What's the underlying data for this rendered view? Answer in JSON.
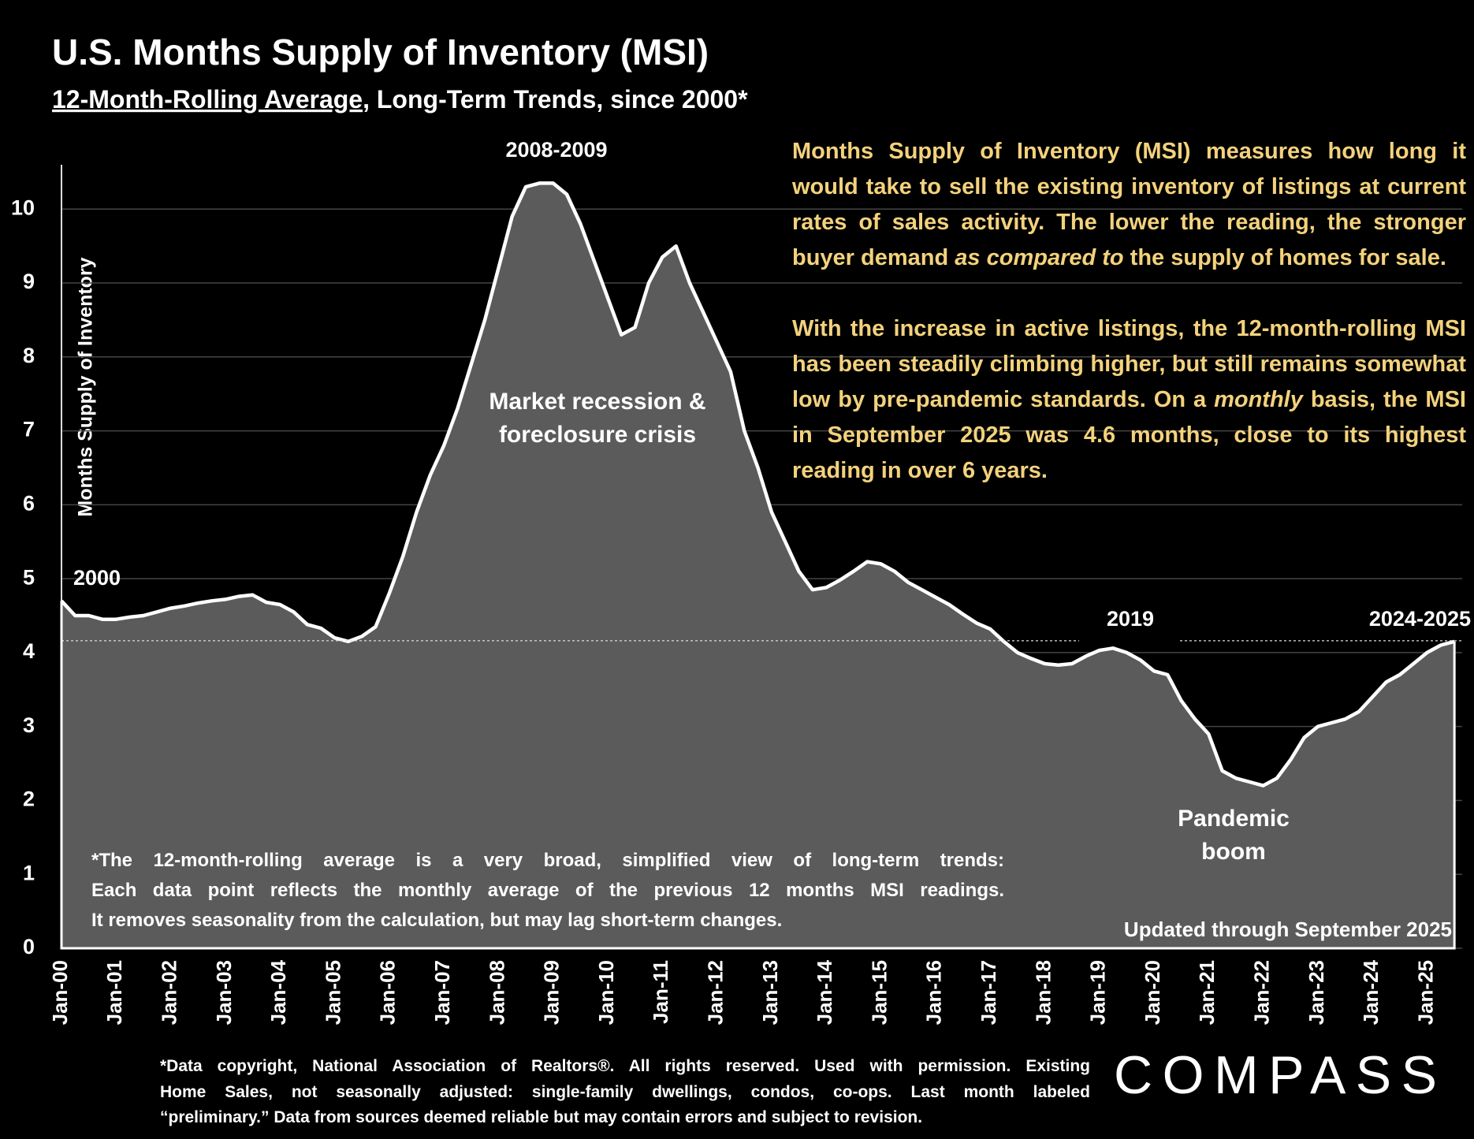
{
  "chart_data": {
    "type": "area",
    "title": "U.S. Months Supply of Inventory (MSI)",
    "subtitle": [
      "12-Month-Rolling Average",
      ", Long-Term Trends, since 2000*"
    ],
    "y_label": "Months Supply of Inventory",
    "categories": [
      "Jan-00",
      null,
      null,
      null,
      "Jan-01",
      null,
      null,
      null,
      "Jan-02",
      null,
      null,
      null,
      "Jan-03",
      null,
      null,
      null,
      "Jan-04",
      null,
      null,
      null,
      "Jan-05",
      null,
      null,
      null,
      "Jan-06",
      null,
      null,
      null,
      "Jan-07",
      null,
      null,
      null,
      "Jan-08",
      null,
      null,
      null,
      "Jan-09",
      null,
      null,
      null,
      "Jan-10",
      null,
      null,
      null,
      "Jan-11",
      null,
      null,
      null,
      "Jan-12",
      null,
      null,
      null,
      "Jan-13",
      null,
      null,
      null,
      "Jan-14",
      null,
      null,
      null,
      "Jan-15",
      null,
      null,
      null,
      "Jan-16",
      null,
      null,
      null,
      "Jan-17",
      null,
      null,
      null,
      "Jan-18",
      null,
      null,
      null,
      "Jan-19",
      null,
      null,
      null,
      "Jan-20",
      null,
      null,
      null,
      "Jan-21",
      null,
      null,
      null,
      "Jan-22",
      null,
      null,
      null,
      "Jan-23",
      null,
      null,
      null,
      "Jan-24",
      null,
      null,
      null,
      "Jan-25",
      null,
      null
    ],
    "values": [
      4.7,
      4.5,
      4.5,
      4.45,
      4.45,
      4.48,
      4.5,
      4.55,
      4.6,
      4.63,
      4.67,
      4.7,
      4.72,
      4.76,
      4.78,
      4.68,
      4.65,
      4.55,
      4.38,
      4.33,
      4.2,
      4.15,
      4.22,
      4.35,
      4.8,
      5.3,
      5.9,
      6.4,
      6.8,
      7.3,
      7.9,
      8.5,
      9.2,
      9.9,
      10.3,
      10.35,
      10.35,
      10.2,
      9.8,
      9.3,
      8.8,
      8.3,
      8.4,
      9.0,
      9.35,
      9.5,
      9.0,
      8.6,
      8.2,
      7.8,
      7.0,
      6.5,
      5.9,
      5.5,
      5.1,
      4.85,
      4.88,
      4.98,
      5.1,
      5.23,
      5.2,
      5.1,
      4.95,
      4.85,
      4.75,
      4.65,
      4.52,
      4.4,
      4.32,
      4.15,
      4.0,
      3.92,
      3.85,
      3.83,
      3.85,
      3.95,
      4.03,
      4.06,
      4.0,
      3.9,
      3.75,
      3.7,
      3.35,
      3.1,
      2.9,
      2.4,
      2.3,
      2.25,
      2.2,
      2.3,
      2.55,
      2.85,
      3.0,
      3.05,
      3.1,
      3.2,
      3.4,
      3.6,
      3.7,
      3.85,
      4.0,
      4.1,
      4.15
    ],
    "color": "#5b5b5b",
    "line_color": "#ffffff",
    "ylim": [
      0,
      10.6
    ],
    "yticks": [
      0,
      1,
      2,
      3,
      4,
      5,
      6,
      7,
      8,
      9,
      10
    ],
    "grid": true,
    "reference_line": 4.16,
    "annotations": [
      "2008-2009",
      "Market recession &",
      "foreclosure crisis",
      "2000",
      "2019",
      "2024-2025",
      "Pandemic",
      "boom"
    ],
    "description": [
      [
        {
          "text": "Months Supply of Inventory (MSI) measures how long it would take to sell the existing inventory of listings at current rates of sales activity. The lower the reading, the stronger buyer demand "
        },
        {
          "text": "as compared to",
          "italic": true
        },
        {
          "text": " the supply of homes for sale."
        }
      ],
      [
        {
          "text": "With the increase in active listings, the 12-month-rolling MSI has been steadily climbing higher, but still remains somewhat low by pre-pandemic standards. On a "
        },
        {
          "text": "monthly",
          "italic": true
        },
        {
          "text": " basis, the MSI in September 2025 was 4.6 months, close to its highest reading in over 6 years."
        }
      ]
    ],
    "footnote": [
      "*The 12-month-rolling average is a very broad, simplified view of long-term trends:",
      "Each data point reflects the monthly average of the previous 12 months MSI readings.",
      "It removes seasonality from the calculation, but may lag short-term changes."
    ],
    "updated": "Updated through September 2025",
    "source": [
      "*Data copyright, National Association of Realtors®. All rights reserved. Used with permission. Existing",
      "Home Sales, not seasonally adjusted:  single-family dwellings, condos, co-ops. Last month labeled",
      "“preliminary.” Data from sources deemed reliable but may contain errors and subject to revision."
    ],
    "logo": "COMPASS"
  }
}
